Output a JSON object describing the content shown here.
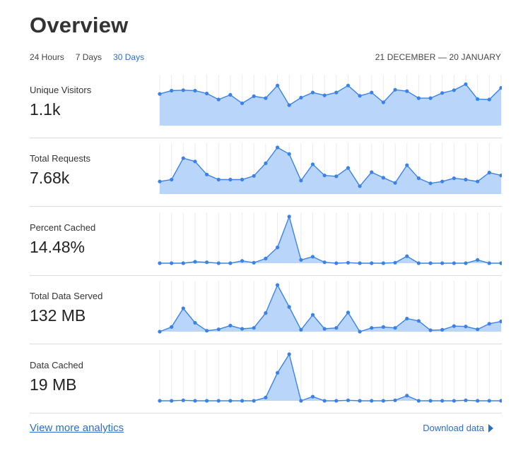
{
  "header": {
    "title": "Overview",
    "tabs": [
      {
        "label": "24 Hours",
        "active": false
      },
      {
        "label": "7 Days",
        "active": false
      },
      {
        "label": "30 Days",
        "active": true
      }
    ],
    "date_range": "21 DECEMBER — 20 JANUARY"
  },
  "metrics": [
    {
      "label": "Unique Visitors",
      "value": "1.1k"
    },
    {
      "label": "Total Requests",
      "value": "7.68k"
    },
    {
      "label": "Percent Cached",
      "value": "14.48%"
    },
    {
      "label": "Total Data Served",
      "value": "132 MB"
    },
    {
      "label": "Data Cached",
      "value": "19 MB"
    }
  ],
  "footer": {
    "more_link": "View more analytics",
    "download_label": "Download data"
  },
  "colors": {
    "accent": "#2c6ecb",
    "line": "#3b82e8",
    "fill": "#b9d5fa"
  },
  "chart_data": [
    {
      "type": "area",
      "series": [
        {
          "values": [
            68,
            75,
            76,
            75,
            69,
            56,
            66,
            48,
            63,
            59,
            86,
            44,
            60,
            71,
            65,
            71,
            86,
            64,
            71,
            50,
            77,
            74,
            59,
            59,
            70,
            76,
            89,
            57,
            56,
            81
          ]
        }
      ]
    },
    {
      "type": "area",
      "series": [
        {
          "values": [
            27,
            31,
            77,
            70,
            42,
            31,
            31,
            31,
            39,
            66,
            100,
            86,
            29,
            64,
            40,
            38,
            56,
            17,
            47,
            35,
            24,
            62,
            34,
            23,
            27,
            34,
            31,
            27,
            46,
            40
          ]
        }
      ]
    },
    {
      "type": "area",
      "series": [
        {
          "values": [
            0,
            0,
            0,
            3,
            2,
            0,
            0,
            5,
            1,
            10,
            34,
            100,
            7,
            14,
            2,
            0,
            1,
            0,
            0,
            0,
            1,
            15,
            0,
            0,
            0,
            0,
            0,
            7,
            0,
            0
          ]
        }
      ]
    },
    {
      "type": "area",
      "series": [
        {
          "values": [
            0,
            10,
            50,
            19,
            2,
            5,
            13,
            6,
            8,
            40,
            100,
            53,
            4,
            36,
            6,
            8,
            41,
            0,
            8,
            10,
            8,
            28,
            23,
            3,
            4,
            12,
            11,
            5,
            17,
            22
          ]
        }
      ]
    },
    {
      "type": "area",
      "series": [
        {
          "values": [
            0,
            0,
            1,
            0,
            0,
            0,
            0,
            0,
            0,
            7,
            60,
            100,
            0,
            9,
            0,
            0,
            1,
            0,
            0,
            0,
            1,
            11,
            0,
            0,
            0,
            0,
            1,
            0,
            0,
            0
          ]
        }
      ]
    }
  ]
}
